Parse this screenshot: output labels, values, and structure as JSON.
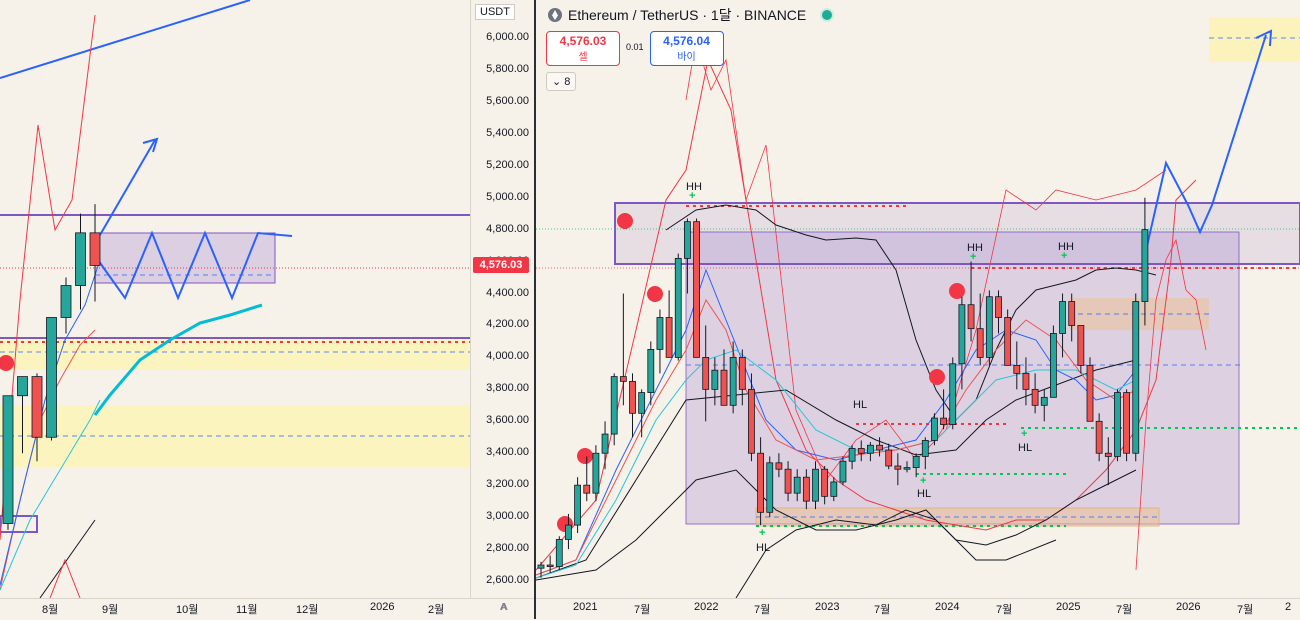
{
  "header": {
    "symbol_icon": "ethereum-icon",
    "title": "Ethereum / TetherUS · 1달 · BINANCE",
    "status_color": "#22ab94"
  },
  "trade": {
    "sell_price": "4,576.03",
    "sell_label": "셀",
    "spread": "0.01",
    "buy_price": "4,576.04",
    "buy_label": "바이"
  },
  "indicator_toggle": {
    "label": "⌄ 8"
  },
  "price_axis": {
    "currency": "USDT",
    "last_price": "4,576.03",
    "labels": [
      "6,000.00",
      "5,800.00",
      "5,600.00",
      "5,400.00",
      "5,200.00",
      "5,000.00",
      "4,800.00",
      "4,600.00",
      "4,400.00",
      "4,200.00",
      "4,000.00",
      "3,800.00",
      "3,600.00",
      "3,400.00",
      "3,200.00",
      "3,000.00",
      "2,800.00",
      "2,600.00"
    ],
    "auto_label": "A"
  },
  "left_time_axis": [
    "8월",
    "9월",
    "10월",
    "11월",
    "12월",
    "2026",
    "2월"
  ],
  "right_time_axis": [
    "2021",
    "7월",
    "2022",
    "7월",
    "2023",
    "7월",
    "2024",
    "7월",
    "2025",
    "7월",
    "2026",
    "7월",
    "2"
  ],
  "annotations": [
    "HH",
    "HH",
    "HH",
    "HL",
    "HL",
    "HL",
    "HL"
  ],
  "colors": {
    "bull": "#26a69a",
    "bear": "#ef5350",
    "accent": "#2962ff",
    "box": "#7e57c2",
    "zone": "#fff59d"
  },
  "chart_data": {
    "type": "candlestick",
    "title": "Ethereum / TetherUS · 1달 · BINANCE",
    "ylim": [
      2550,
      6100
    ],
    "left_panel": {
      "ylim": [
        2550,
        6100
      ],
      "candles": [
        {
          "o": 2960,
          "h": 3760,
          "l": 2920,
          "c": 3760
        },
        {
          "o": 3760,
          "h": 3880,
          "l": 3400,
          "c": 3880
        },
        {
          "o": 3880,
          "h": 3900,
          "l": 3350,
          "c": 3500
        },
        {
          "o": 3500,
          "h": 4250,
          "l": 3480,
          "c": 4250
        },
        {
          "o": 4250,
          "h": 4500,
          "l": 4150,
          "c": 4450
        },
        {
          "o": 4450,
          "h": 4900,
          "l": 4300,
          "c": 4780
        },
        {
          "o": 4780,
          "h": 4960,
          "l": 4350,
          "c": 4576
        }
      ]
    },
    "right_panel": {
      "ylim": [
        2550,
        6100
      ],
      "candles": [
        {
          "o": 2680,
          "h": 2720,
          "l": 2620,
          "c": 2700
        },
        {
          "o": 2700,
          "h": 2760,
          "l": 2650,
          "c": 2690
        },
        {
          "o": 2690,
          "h": 2880,
          "l": 2670,
          "c": 2860
        },
        {
          "o": 2860,
          "h": 3020,
          "l": 2800,
          "c": 2950
        },
        {
          "o": 2950,
          "h": 3250,
          "l": 2900,
          "c": 3200
        },
        {
          "o": 3200,
          "h": 3380,
          "l": 3100,
          "c": 3150
        },
        {
          "o": 3150,
          "h": 3450,
          "l": 3100,
          "c": 3400
        },
        {
          "o": 3400,
          "h": 3600,
          "l": 3300,
          "c": 3520
        },
        {
          "o": 3520,
          "h": 3900,
          "l": 3450,
          "c": 3880
        },
        {
          "o": 3880,
          "h": 4400,
          "l": 3700,
          "c": 3850
        },
        {
          "o": 3850,
          "h": 3900,
          "l": 3500,
          "c": 3650
        },
        {
          "o": 3650,
          "h": 3800,
          "l": 3500,
          "c": 3780
        },
        {
          "o": 3780,
          "h": 4100,
          "l": 3700,
          "c": 4050
        },
        {
          "o": 4050,
          "h": 4300,
          "l": 3900,
          "c": 4250
        },
        {
          "o": 4250,
          "h": 4420,
          "l": 4000,
          "c": 4000
        },
        {
          "o": 4000,
          "h": 4650,
          "l": 3980,
          "c": 4620
        },
        {
          "o": 4620,
          "h": 4870,
          "l": 4400,
          "c": 4850
        },
        {
          "o": 4850,
          "h": 4870,
          "l": 4000,
          "c": 4000
        },
        {
          "o": 4000,
          "h": 4200,
          "l": 3600,
          "c": 3800
        },
        {
          "o": 3800,
          "h": 4000,
          "l": 3700,
          "c": 3920
        },
        {
          "o": 3920,
          "h": 4050,
          "l": 3700,
          "c": 3700
        },
        {
          "o": 3700,
          "h": 4100,
          "l": 3650,
          "c": 4000
        },
        {
          "o": 4000,
          "h": 4050,
          "l": 3700,
          "c": 3800
        },
        {
          "o": 3800,
          "h": 3900,
          "l": 3350,
          "c": 3400
        },
        {
          "o": 3400,
          "h": 3500,
          "l": 2950,
          "c": 3030
        },
        {
          "o": 3030,
          "h": 3380,
          "l": 3000,
          "c": 3340
        },
        {
          "o": 3340,
          "h": 3400,
          "l": 3250,
          "c": 3300
        },
        {
          "o": 3300,
          "h": 3350,
          "l": 3100,
          "c": 3150
        },
        {
          "o": 3150,
          "h": 3300,
          "l": 3100,
          "c": 3250
        },
        {
          "o": 3250,
          "h": 3300,
          "l": 3050,
          "c": 3100
        },
        {
          "o": 3100,
          "h": 3350,
          "l": 3050,
          "c": 3300
        },
        {
          "o": 3300,
          "h": 3320,
          "l": 3080,
          "c": 3130
        },
        {
          "o": 3130,
          "h": 3250,
          "l": 3100,
          "c": 3220
        },
        {
          "o": 3220,
          "h": 3380,
          "l": 3200,
          "c": 3350
        },
        {
          "o": 3350,
          "h": 3450,
          "l": 3300,
          "c": 3430
        },
        {
          "o": 3430,
          "h": 3480,
          "l": 3350,
          "c": 3400
        },
        {
          "o": 3400,
          "h": 3470,
          "l": 3350,
          "c": 3450
        },
        {
          "o": 3450,
          "h": 3500,
          "l": 3380,
          "c": 3420
        },
        {
          "o": 3420,
          "h": 3460,
          "l": 3300,
          "c": 3320
        },
        {
          "o": 3320,
          "h": 3400,
          "l": 3200,
          "c": 3300
        },
        {
          "o": 3300,
          "h": 3350,
          "l": 3280,
          "c": 3310
        },
        {
          "o": 3310,
          "h": 3400,
          "l": 3250,
          "c": 3380
        },
        {
          "o": 3380,
          "h": 3500,
          "l": 3300,
          "c": 3480
        },
        {
          "o": 3480,
          "h": 3650,
          "l": 3450,
          "c": 3620
        },
        {
          "o": 3620,
          "h": 3800,
          "l": 3550,
          "c": 3580
        },
        {
          "o": 3580,
          "h": 4000,
          "l": 3550,
          "c": 3960
        },
        {
          "o": 3960,
          "h": 4380,
          "l": 3800,
          "c": 4330
        },
        {
          "o": 4330,
          "h": 4600,
          "l": 4100,
          "c": 4180
        },
        {
          "o": 4180,
          "h": 4400,
          "l": 3950,
          "c": 4000
        },
        {
          "o": 4000,
          "h": 4420,
          "l": 3950,
          "c": 4380
        },
        {
          "o": 4380,
          "h": 4420,
          "l": 4150,
          "c": 4250
        },
        {
          "o": 4250,
          "h": 4300,
          "l": 3950,
          "c": 3950
        },
        {
          "o": 3950,
          "h": 4100,
          "l": 3800,
          "c": 3900
        },
        {
          "o": 3900,
          "h": 4000,
          "l": 3700,
          "c": 3800
        },
        {
          "o": 3800,
          "h": 3900,
          "l": 3650,
          "c": 3700
        },
        {
          "o": 3700,
          "h": 3800,
          "l": 3600,
          "c": 3750
        },
        {
          "o": 3750,
          "h": 4200,
          "l": 3750,
          "c": 4150
        },
        {
          "o": 4150,
          "h": 4400,
          "l": 4000,
          "c": 4350
        },
        {
          "o": 4350,
          "h": 4400,
          "l": 4100,
          "c": 4200
        },
        {
          "o": 4200,
          "h": 4200,
          "l": 3900,
          "c": 3950
        },
        {
          "o": 3950,
          "h": 4000,
          "l": 3600,
          "c": 3600
        },
        {
          "o": 3600,
          "h": 3650,
          "l": 3350,
          "c": 3400
        },
        {
          "o": 3400,
          "h": 3500,
          "l": 3200,
          "c": 3380
        },
        {
          "o": 3380,
          "h": 3800,
          "l": 3350,
          "c": 3780
        },
        {
          "o": 3780,
          "h": 3800,
          "l": 3350,
          "c": 3400
        },
        {
          "o": 3400,
          "h": 4400,
          "l": 3350,
          "c": 4350
        },
        {
          "o": 4350,
          "h": 5000,
          "l": 4200,
          "c": 4800
        }
      ]
    }
  }
}
